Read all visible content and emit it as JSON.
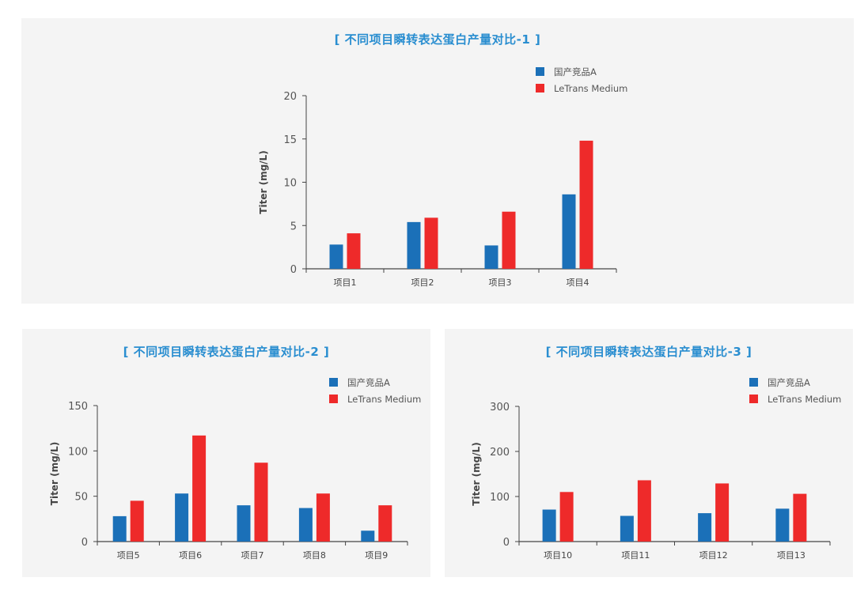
{
  "colors": {
    "series_a": "#1b70b8",
    "series_b": "#ee2a2a",
    "title": "#2a8ed0"
  },
  "legend": [
    "国产竞品A",
    "LeTrans Medium"
  ],
  "chart_data": [
    {
      "type": "bar",
      "title": "[ 不同项目瞬转表达蛋白产量对比-1 ]",
      "xlabel": "",
      "ylabel": "Titer (mg/L)",
      "ylim": [
        0,
        20
      ],
      "yticks": [
        0,
        5,
        10,
        15,
        20
      ],
      "legend_position": "top-right",
      "grid": false,
      "categories": [
        "项目1",
        "项目2",
        "项目3",
        "项目4"
      ],
      "series": [
        {
          "name": "国产竞品A",
          "color": "#1b70b8",
          "values": [
            2.8,
            5.4,
            2.7,
            8.6
          ]
        },
        {
          "name": "LeTrans Medium",
          "color": "#ee2a2a",
          "values": [
            4.1,
            5.9,
            6.6,
            14.8
          ]
        }
      ]
    },
    {
      "type": "bar",
      "title": "[ 不同项目瞬转表达蛋白产量对比-2 ]",
      "xlabel": "",
      "ylabel": "Titer (mg/L)",
      "ylim": [
        0,
        150
      ],
      "yticks": [
        0,
        50,
        100,
        150
      ],
      "legend_position": "top-right",
      "grid": false,
      "categories": [
        "项目5",
        "项目6",
        "项目7",
        "项目8",
        "项目9"
      ],
      "series": [
        {
          "name": "国产竞品A",
          "color": "#1b70b8",
          "values": [
            28,
            53,
            40,
            37,
            12
          ]
        },
        {
          "name": "LeTrans Medium",
          "color": "#ee2a2a",
          "values": [
            45,
            117,
            87,
            53,
            40
          ]
        }
      ]
    },
    {
      "type": "bar",
      "title": "[ 不同项目瞬转表达蛋白产量对比-3 ]",
      "xlabel": "",
      "ylabel": "Titer (mg/L)",
      "ylim": [
        0,
        300
      ],
      "yticks": [
        0,
        100,
        200,
        300
      ],
      "legend_position": "top-right",
      "grid": false,
      "categories": [
        "项目10",
        "项目11",
        "项目12",
        "项目13"
      ],
      "series": [
        {
          "name": "国产竞品A",
          "color": "#1b70b8",
          "values": [
            71,
            57,
            63,
            73
          ]
        },
        {
          "name": "LeTrans Medium",
          "color": "#ee2a2a",
          "values": [
            110,
            136,
            129,
            106
          ]
        }
      ]
    }
  ]
}
